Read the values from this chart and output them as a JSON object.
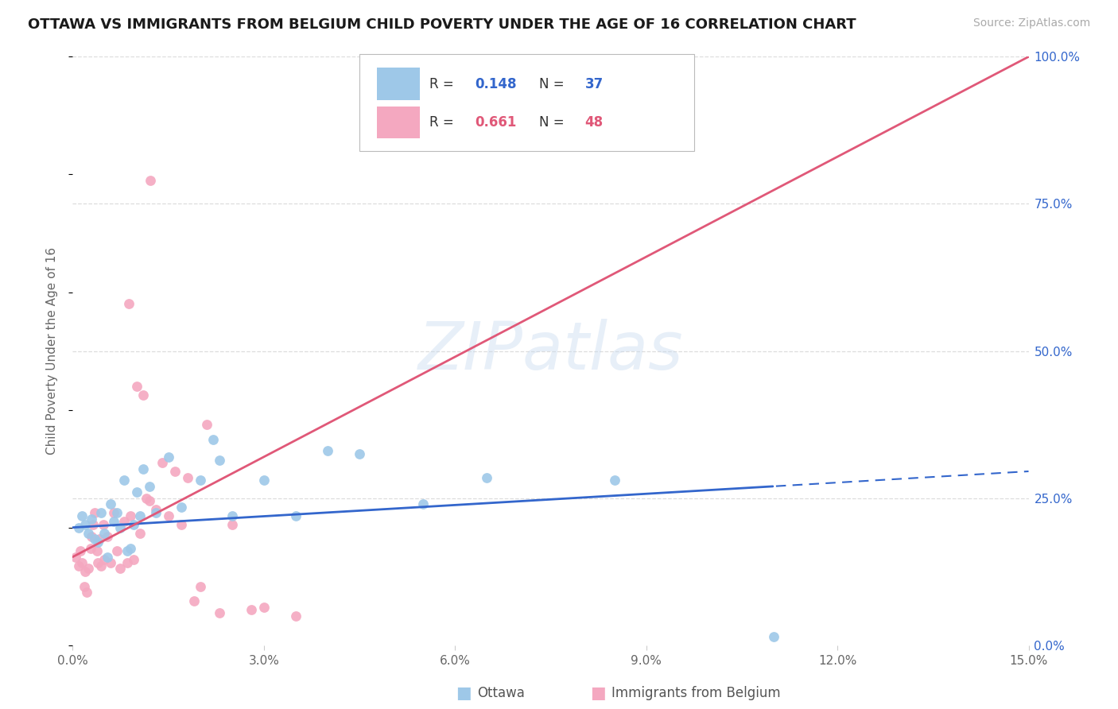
{
  "title": "OTTAWA VS IMMIGRANTS FROM BELGIUM CHILD POVERTY UNDER THE AGE OF 16 CORRELATION CHART",
  "source": "Source: ZipAtlas.com",
  "ylabel": "Child Poverty Under the Age of 16",
  "xlim": [
    0.0,
    15.0
  ],
  "ylim": [
    0.0,
    100.0
  ],
  "bg_color": "#ffffff",
  "grid_color": "#dddddd",
  "watermark": "ZIPatlas",
  "legend_R_ottawa": "0.148",
  "legend_N_ottawa": "37",
  "legend_R_belgium": "0.661",
  "legend_N_belgium": "48",
  "ottawa_color": "#9ec8e8",
  "belgium_color": "#f4a8c0",
  "line_ottawa_color": "#3366cc",
  "line_belgium_color": "#e05878",
  "label_color": "#3366cc",
  "ottawa_scatter_x": [
    0.1,
    0.15,
    0.2,
    0.25,
    0.3,
    0.35,
    0.4,
    0.45,
    0.5,
    0.55,
    0.6,
    0.65,
    0.7,
    0.75,
    0.8,
    0.85,
    0.9,
    0.95,
    1.0,
    1.05,
    1.1,
    1.2,
    1.3,
    1.5,
    1.7,
    2.0,
    2.3,
    2.5,
    3.0,
    3.5,
    4.0,
    4.5,
    5.5,
    6.5,
    8.5,
    11.0,
    2.2
  ],
  "ottawa_scatter_y": [
    20.0,
    22.0,
    20.5,
    19.0,
    21.5,
    18.0,
    17.5,
    22.5,
    19.0,
    15.0,
    24.0,
    21.0,
    22.5,
    20.0,
    28.0,
    16.0,
    16.5,
    20.5,
    26.0,
    22.0,
    30.0,
    27.0,
    22.5,
    32.0,
    23.5,
    28.0,
    31.5,
    22.0,
    28.0,
    22.0,
    33.0,
    32.5,
    24.0,
    28.5,
    28.0,
    1.5,
    35.0
  ],
  "belgium_scatter_x": [
    0.05,
    0.1,
    0.12,
    0.15,
    0.18,
    0.2,
    0.22,
    0.25,
    0.28,
    0.3,
    0.32,
    0.35,
    0.38,
    0.4,
    0.42,
    0.45,
    0.48,
    0.5,
    0.55,
    0.6,
    0.65,
    0.7,
    0.75,
    0.8,
    0.85,
    0.9,
    0.95,
    1.0,
    1.05,
    1.1,
    1.15,
    1.2,
    1.3,
    1.4,
    1.5,
    1.6,
    1.7,
    1.8,
    1.9,
    2.0,
    2.1,
    2.3,
    2.5,
    2.8,
    3.0,
    3.5,
    1.22,
    0.88
  ],
  "belgium_scatter_y": [
    15.0,
    13.5,
    16.0,
    14.0,
    10.0,
    12.5,
    9.0,
    13.0,
    16.5,
    18.5,
    20.5,
    22.5,
    16.0,
    14.0,
    18.0,
    13.5,
    20.5,
    14.5,
    18.5,
    14.0,
    22.5,
    16.0,
    13.0,
    21.0,
    14.0,
    22.0,
    14.5,
    44.0,
    19.0,
    42.5,
    25.0,
    24.5,
    23.0,
    31.0,
    22.0,
    29.5,
    20.5,
    28.5,
    7.5,
    10.0,
    37.5,
    5.5,
    20.5,
    6.0,
    6.5,
    5.0,
    79.0,
    58.0
  ]
}
